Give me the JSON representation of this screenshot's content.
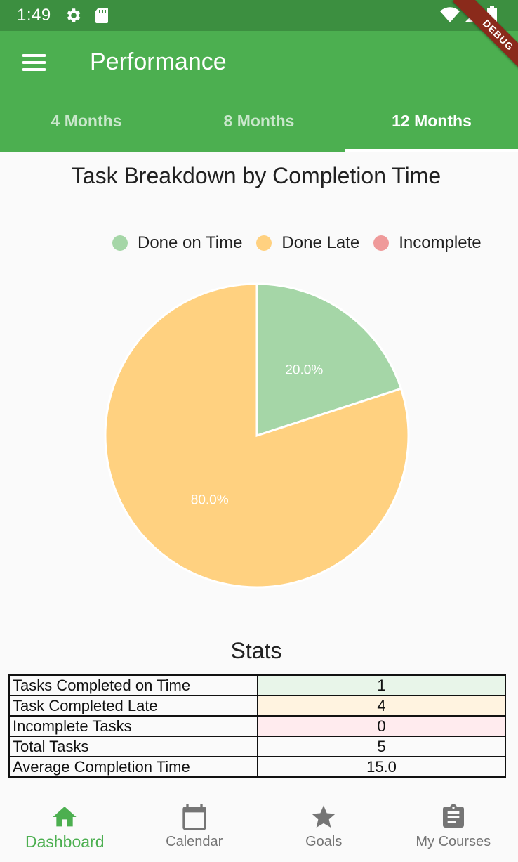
{
  "status_bar": {
    "time": "1:49"
  },
  "debug_banner": "DEBUG",
  "app_bar": {
    "title": "Performance"
  },
  "tabs": [
    {
      "label": "4 Months"
    },
    {
      "label": "8 Months"
    },
    {
      "label": "12 Months"
    }
  ],
  "chart": {
    "title": "Task Breakdown by Completion Time",
    "legend": [
      {
        "label": "Done on Time",
        "color": "#a5d6a7"
      },
      {
        "label": "Done Late",
        "color": "#ffd180"
      },
      {
        "label": "Incomplete",
        "color": "#ef9a9a"
      }
    ]
  },
  "chart_data": {
    "type": "pie",
    "title": "Task Breakdown by Completion Time",
    "categories": [
      "Done on Time",
      "Done Late",
      "Incomplete"
    ],
    "values": [
      20.0,
      80.0,
      0.0
    ],
    "labels": [
      "20.0%",
      "80.0%",
      ""
    ],
    "colors": [
      "#a5d6a7",
      "#ffd180",
      "#ef9a9a"
    ],
    "legend_position": "top-right"
  },
  "stats": {
    "title": "Stats",
    "rows": [
      {
        "label": "Tasks Completed on Time",
        "value": "1",
        "color": "#e8f5e9"
      },
      {
        "label": "Task Completed Late",
        "value": "4",
        "color": "#fff3e0"
      },
      {
        "label": "Incomplete Tasks",
        "value": "0",
        "color": "#ffebee"
      },
      {
        "label": "Total Tasks",
        "value": "5",
        "color": "#ffffff"
      },
      {
        "label": "Average Completion Time",
        "value": "15.0",
        "color": "#ffffff"
      }
    ]
  },
  "bottom_nav": [
    {
      "label": "Dashboard",
      "icon": "home-icon"
    },
    {
      "label": "Calendar",
      "icon": "calendar-icon"
    },
    {
      "label": "Goals",
      "icon": "star-icon"
    },
    {
      "label": "My Courses",
      "icon": "clipboard-icon"
    }
  ]
}
